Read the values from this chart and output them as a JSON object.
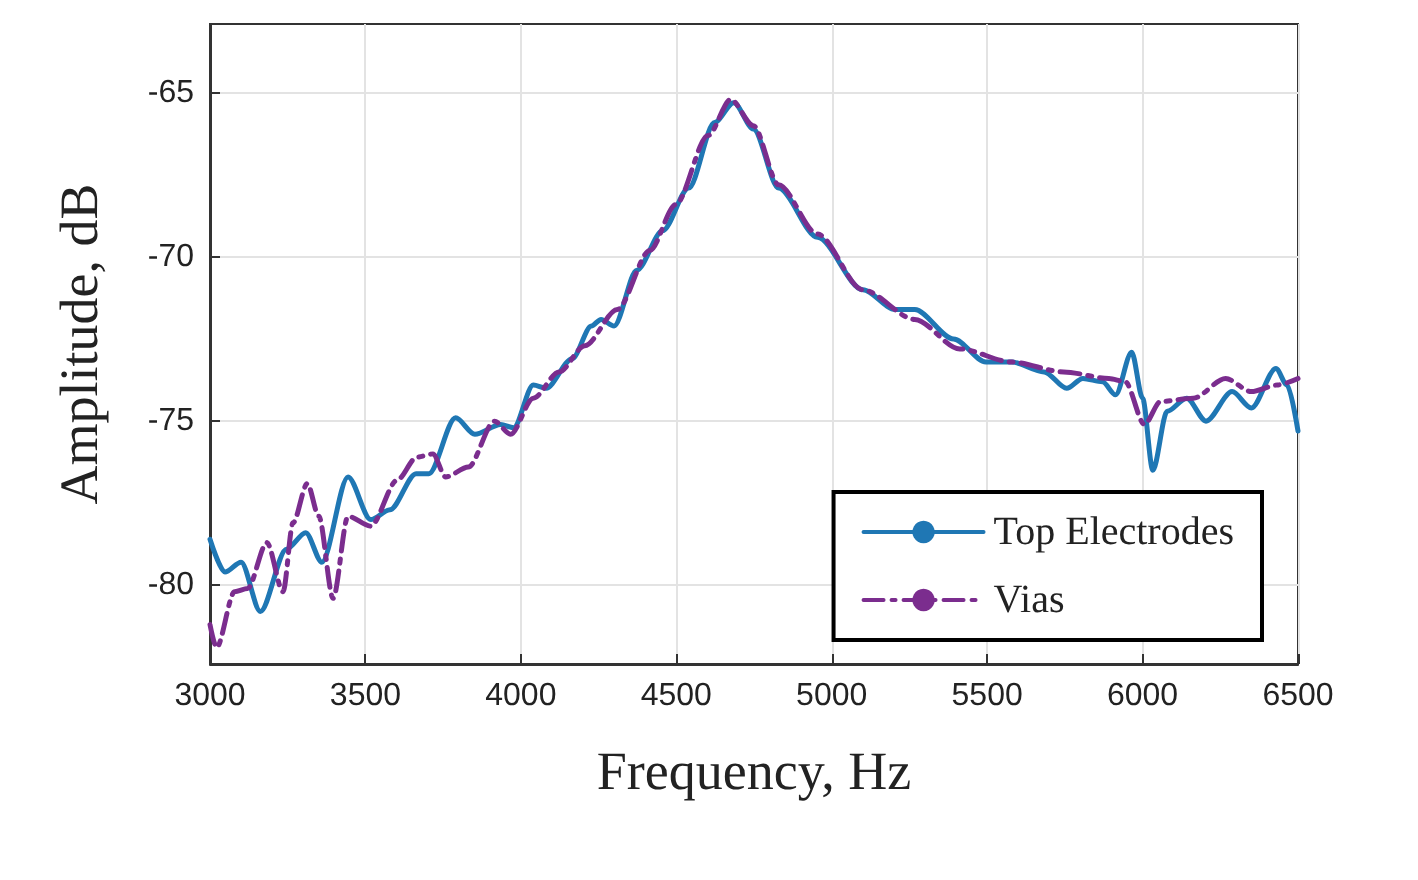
{
  "chart_data": {
    "type": "line",
    "xlabel": "Frequency, Hz",
    "ylabel": "Amplitude, dB",
    "xlim": [
      3000,
      6500
    ],
    "xticks": [
      3000,
      3500,
      4000,
      4500,
      5000,
      5500,
      6000,
      6500
    ],
    "ylim": [
      -82.4,
      -62.9
    ],
    "yticks": [
      -80,
      -75,
      -70,
      -65
    ],
    "grid": true,
    "legend": "bottom right",
    "marker": "none",
    "series": [
      {
        "name": "Top Electrodes",
        "color": "#1f77b4",
        "line_style": "solid",
        "x": [
          3000,
          3048,
          3100,
          3162,
          3246,
          3308,
          3360,
          3444,
          3517,
          3579,
          3663,
          3704,
          3790,
          3852,
          3935,
          3977,
          4040,
          4081,
          4165,
          4227,
          4258,
          4300,
          4373,
          4456,
          4540,
          4623,
          4685,
          4748,
          4829,
          4954,
          5100,
          5204,
          5267,
          5392,
          5496,
          5579,
          5683,
          5756,
          5808,
          5871,
          5913,
          5965,
          6000,
          6033,
          6079,
          6142,
          6204,
          6288,
          6350,
          6429,
          6465,
          6500
        ],
        "values": [
          -78.6,
          -79.6,
          -79.3,
          -80.8,
          -78.9,
          -78.4,
          -79.3,
          -76.7,
          -78.0,
          -77.7,
          -76.6,
          -76.6,
          -74.9,
          -75.4,
          -75.1,
          -75.2,
          -73.9,
          -74.0,
          -73.1,
          -72.1,
          -71.9,
          -72.1,
          -70.4,
          -69.2,
          -67.9,
          -65.9,
          -65.3,
          -66.1,
          -67.9,
          -69.4,
          -71.0,
          -71.6,
          -71.6,
          -72.5,
          -73.2,
          -73.2,
          -73.5,
          -74.0,
          -73.7,
          -73.8,
          -74.2,
          -72.9,
          -74.3,
          -76.5,
          -74.7,
          -74.3,
          -75.0,
          -74.1,
          -74.6,
          -73.4,
          -73.9,
          -75.3
        ]
      },
      {
        "name": "Vias",
        "color": "#7b2d8e",
        "line_style": "dashdot",
        "x": [
          3000,
          3021,
          3079,
          3121,
          3183,
          3235,
          3267,
          3313,
          3350,
          3396,
          3444,
          3517,
          3602,
          3665,
          3717,
          3758,
          3831,
          3915,
          3967,
          4040,
          4123,
          4206,
          4310,
          4415,
          4498,
          4602,
          4675,
          4748,
          4829,
          4954,
          5100,
          5267,
          5412,
          5579,
          5746,
          5892,
          5944,
          6006,
          6058,
          6163,
          6267,
          6350,
          6433,
          6500
        ],
        "values": [
          -81.2,
          -81.9,
          -80.2,
          -80.1,
          -78.7,
          -80.2,
          -78.1,
          -76.9,
          -77.9,
          -80.4,
          -77.9,
          -78.2,
          -76.8,
          -76.1,
          -76.0,
          -76.7,
          -76.4,
          -75.0,
          -75.4,
          -74.3,
          -73.5,
          -72.7,
          -71.6,
          -69.8,
          -68.4,
          -66.3,
          -65.2,
          -66.0,
          -67.8,
          -69.3,
          -71.0,
          -71.9,
          -72.8,
          -73.2,
          -73.5,
          -73.7,
          -73.8,
          -75.1,
          -74.4,
          -74.3,
          -73.7,
          -74.1,
          -73.9,
          -73.7
        ]
      }
    ]
  }
}
